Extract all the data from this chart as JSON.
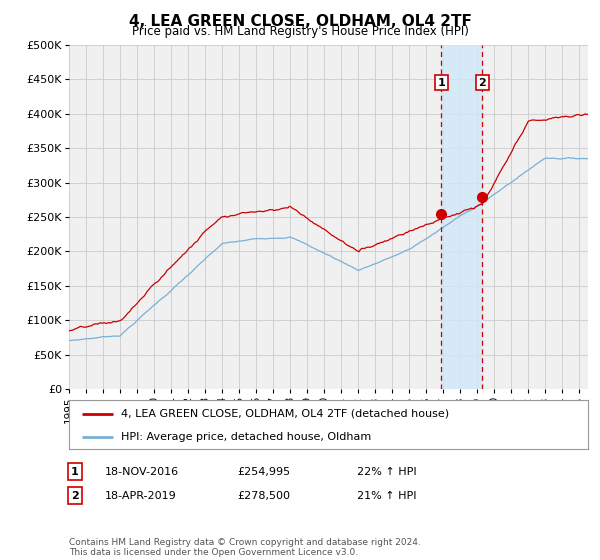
{
  "title": "4, LEA GREEN CLOSE, OLDHAM, OL4 2TF",
  "subtitle": "Price paid vs. HM Land Registry's House Price Index (HPI)",
  "ylabel_ticks": [
    "£0",
    "£50K",
    "£100K",
    "£150K",
    "£200K",
    "£250K",
    "£300K",
    "£350K",
    "£400K",
    "£450K",
    "£500K"
  ],
  "ytick_values": [
    0,
    50000,
    100000,
    150000,
    200000,
    250000,
    300000,
    350000,
    400000,
    450000,
    500000
  ],
  "ylim": [
    0,
    500000
  ],
  "xlim_start": 1995.0,
  "xlim_end": 2025.5,
  "red_line_color": "#cc0000",
  "blue_line_color": "#7ab0d4",
  "grid_color": "#cccccc",
  "bg_color": "#ffffff",
  "plot_bg_color": "#f0f0f0",
  "marker1_x": 2016.88,
  "marker1_y": 254995,
  "marker2_x": 2019.29,
  "marker2_y": 278500,
  "marker_shading_color": "#d0e8f8",
  "legend_label_red": "4, LEA GREEN CLOSE, OLDHAM, OL4 2TF (detached house)",
  "legend_label_blue": "HPI: Average price, detached house, Oldham",
  "annotation1_num": "1",
  "annotation1_date": "18-NOV-2016",
  "annotation1_price": "£254,995",
  "annotation1_hpi": "22% ↑ HPI",
  "annotation2_num": "2",
  "annotation2_date": "18-APR-2019",
  "annotation2_price": "£278,500",
  "annotation2_hpi": "21% ↑ HPI",
  "footnote": "Contains HM Land Registry data © Crown copyright and database right 2024.\nThis data is licensed under the Open Government Licence v3.0.",
  "xtick_years": [
    1995,
    1996,
    1997,
    1998,
    1999,
    2000,
    2001,
    2002,
    2003,
    2004,
    2005,
    2006,
    2007,
    2008,
    2009,
    2010,
    2011,
    2012,
    2013,
    2014,
    2015,
    2016,
    2017,
    2018,
    2019,
    2020,
    2021,
    2022,
    2023,
    2024,
    2025
  ]
}
